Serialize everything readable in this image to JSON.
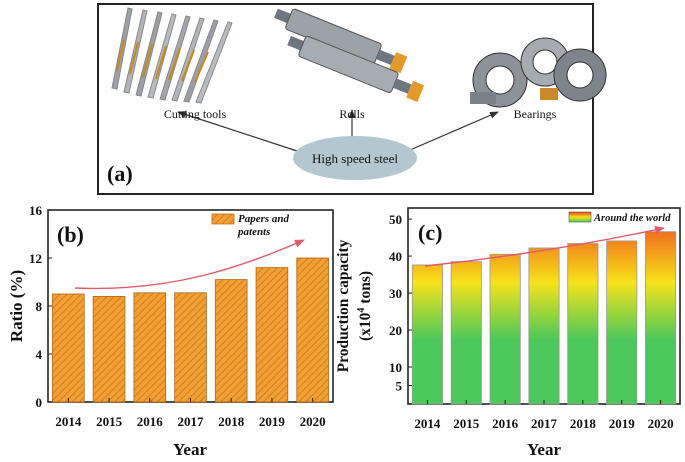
{
  "panel_a": {
    "label": "(a)",
    "center_label": "High speed steel",
    "items": [
      "Cutting tools",
      "Rolls",
      "Bearings"
    ]
  },
  "colors": {
    "bar_orange": "#f0a034",
    "bar_hatch": "#c96e12",
    "arrow": "#e05a6a",
    "ellipse": "#b3c7d1",
    "grad_top": "#f03a1e",
    "grad_mid": "#f6e21a",
    "grad_bottom": "#4cc95a"
  },
  "chart_data": [
    {
      "type": "bar",
      "panel_label": "(b)",
      "categories": [
        "2014",
        "2015",
        "2016",
        "2017",
        "2018",
        "2019",
        "2020"
      ],
      "series": [
        {
          "name": "Papers and patents",
          "values": [
            9.0,
            8.8,
            9.1,
            9.1,
            10.2,
            11.2,
            12.0
          ]
        }
      ],
      "xlabel": "Year",
      "ylabel": "Ratio (%)",
      "ylim": [
        0,
        16
      ],
      "yticks": [
        0,
        4,
        8,
        12,
        16
      ],
      "legend": "top-right",
      "trend_arrow": true
    },
    {
      "type": "bar",
      "panel_label": "(c)",
      "categories": [
        "2014",
        "2015",
        "2016",
        "2017",
        "2018",
        "2019",
        "2020"
      ],
      "series": [
        {
          "name": "Around the world",
          "values": [
            37.6,
            38.5,
            40.5,
            42.2,
            43.4,
            44.1,
            46.6
          ]
        }
      ],
      "xlabel": "Year",
      "ylabel_line1": "Production capacity",
      "ylabel_line2_prefix": "(x10",
      "ylabel_sup": "4",
      "ylabel_line2_suffix": " tons)",
      "ylim": [
        0,
        53
      ],
      "yticks": [
        5,
        10,
        20,
        30,
        40,
        50
      ],
      "legend": "top-right",
      "trend_arrow": true
    }
  ]
}
